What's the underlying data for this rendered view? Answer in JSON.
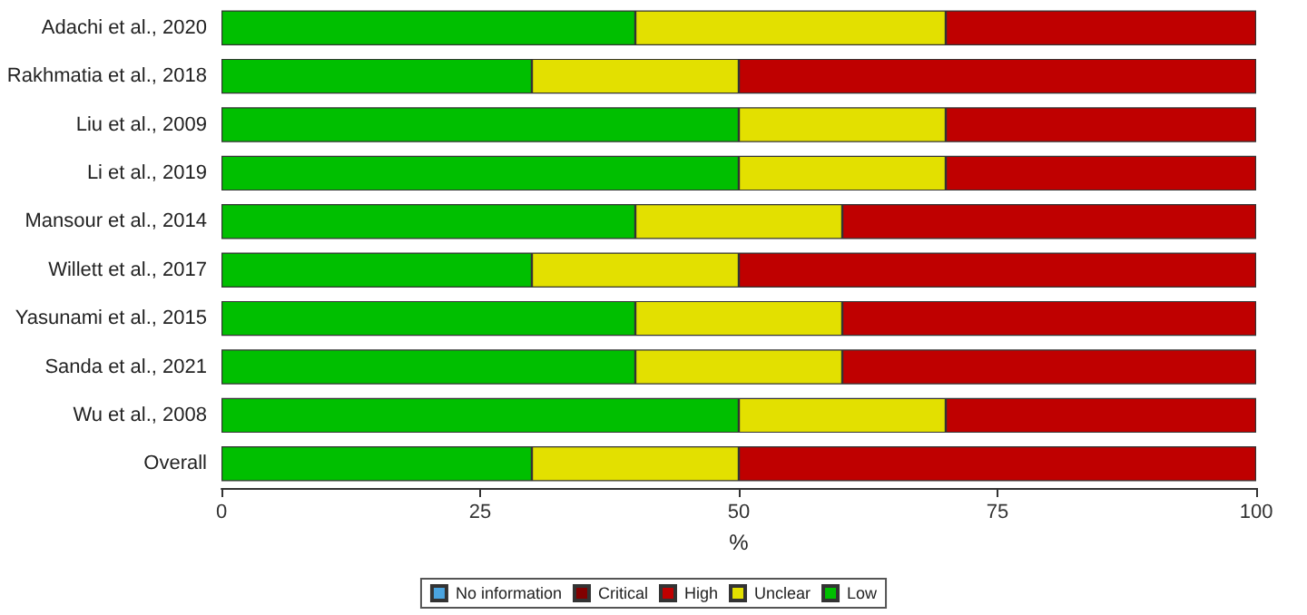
{
  "chart_data": {
    "type": "bar",
    "orientation": "horizontal",
    "stacked": true,
    "xlabel": "%",
    "categories": [
      "Adachi et al., 2020",
      "Rakhmatia et al., 2018",
      "Liu et al., 2009",
      "Li et al., 2019",
      "Mansour et al., 2014",
      "Willett et al., 2017",
      "Yasunami et al., 2015",
      "Sanda et al., 2021",
      "Wu et al., 2008",
      "Overall"
    ],
    "series": [
      {
        "name": "Low",
        "color": "#00bf00",
        "values": [
          40,
          30,
          50,
          50,
          40,
          30,
          40,
          40,
          50,
          30
        ]
      },
      {
        "name": "Unclear",
        "color": "#e3e000",
        "values": [
          30,
          20,
          20,
          20,
          20,
          20,
          20,
          20,
          20,
          20
        ]
      },
      {
        "name": "High",
        "color": "#bf0000",
        "values": [
          30,
          50,
          30,
          30,
          40,
          50,
          40,
          40,
          30,
          50
        ]
      },
      {
        "name": "Critical",
        "color": "#820000",
        "values": [
          0,
          0,
          0,
          0,
          0,
          0,
          0,
          0,
          0,
          0
        ]
      },
      {
        "name": "No information",
        "color": "#4aa4df",
        "values": [
          0,
          0,
          0,
          0,
          0,
          0,
          0,
          0,
          0,
          0
        ]
      }
    ],
    "xlim": [
      0,
      100
    ],
    "xticks": [
      0,
      25,
      50,
      75,
      100
    ],
    "grid": false,
    "legend": "bottom"
  }
}
